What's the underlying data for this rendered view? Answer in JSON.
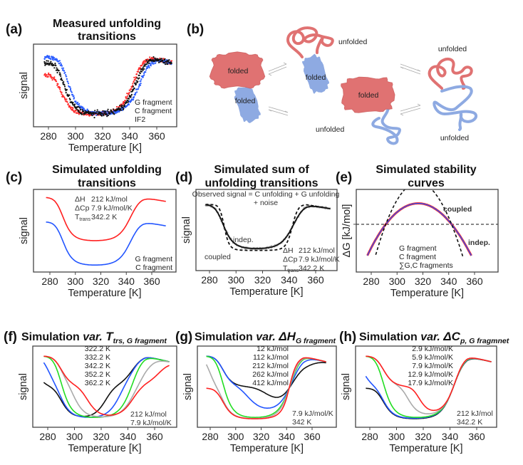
{
  "diagram": {
    "label": "(b)",
    "labels": [
      "folded",
      "folded",
      "unfolded",
      "folded",
      "folded",
      "unfolded",
      "unfolded",
      "unfolded"
    ],
    "colors": {
      "g_fragment": "#e07272",
      "c_fragment": "#8eaae2",
      "arrow": "#aaaaaa"
    }
  },
  "chart_data": [
    {
      "id": "a",
      "label": "(a)",
      "type": "scatter",
      "title": [
        "Measured unfolding",
        "transitions"
      ],
      "xlabel": "Temperature [K]",
      "ylabel": "signal",
      "xticks": [
        280,
        300,
        320,
        340,
        360
      ],
      "ylim": [
        -0.18,
        1.22
      ],
      "series": [
        {
          "name": "G fragment",
          "color": "#ff2a2a",
          "quantity": "signal",
          "components": [
            {
              "dH": 212,
              "dCp": 7.9,
              "Tm": 341
            }
          ],
          "cold_slope": 0.0045,
          "noise": 0.03,
          "x_range": [
            277,
            371
          ]
        },
        {
          "name": "C fragment",
          "color": "#2a5cff",
          "quantity": "signal",
          "components": [
            {
              "dH": 212,
              "dCp": 7.9,
              "Tm": 346.5
            }
          ],
          "cold_slope": 0.0,
          "noise": 0.03,
          "x_range": [
            277,
            371
          ]
        },
        {
          "name": "IF2",
          "color": "#111111",
          "quantity": "signal",
          "components": [
            {
              "dH": 212,
              "dCp": 7.9,
              "Tm": 343.5
            }
          ],
          "cold_slope": 0.0015,
          "noise": 0.04,
          "x_range": [
            277,
            371
          ]
        }
      ],
      "annotations": []
    },
    {
      "id": "c",
      "label": "(c)",
      "type": "line",
      "title": [
        "Simulated unfolding",
        "transitions"
      ],
      "xlabel": "Temperature [K]",
      "ylabel": "signal",
      "xticks": [
        280,
        300,
        320,
        340,
        360
      ],
      "ylim": [
        -0.11,
        1.715
      ],
      "series": [
        {
          "name": "G fragment",
          "color": "#ff2020",
          "quantity": "signal",
          "components": [
            {
              "dH": 212,
              "dCp": 7.9,
              "Tm": 342.2
            }
          ],
          "offset": 0.54,
          "x_range": [
            277,
            371
          ]
        },
        {
          "name": "C fragment",
          "color": "#2255ff",
          "quantity": "signal",
          "components": [
            {
              "dH": 212,
              "dCp": 7.9,
              "Tm": 342.2
            }
          ],
          "offset": 0,
          "x_range": [
            277,
            371
          ]
        }
      ],
      "annotations": [
        {
          "symbol": "ΔH",
          "value": "212 kJ/mol"
        },
        {
          "symbol": "ΔCp",
          "value": "7.9 kJ/mol/K"
        },
        {
          "symbol": "T",
          "sub": "trans",
          "value": "342.2 K"
        }
      ]
    },
    {
      "id": "d",
      "label": "(d)",
      "type": "line",
      "title": [
        "Simulated sum of",
        "unfolding transitions"
      ],
      "xlabel": "Temperature [K]",
      "ylabel": "signal",
      "xticks": [
        280,
        300,
        320,
        340,
        360
      ],
      "ylim": [
        -0.875,
        2.66
      ],
      "header": [
        "Observed signal = C unfolding + G unfolding",
        "+ noise"
      ],
      "series": [
        {
          "name": "noise",
          "kind": "points",
          "color": "#aaaaaa",
          "quantity": "signal",
          "components": [
            {
              "dH": 212,
              "dCp": 7.9,
              "Tm": 342.2
            },
            {
              "dH": 212,
              "dCp": 7.9,
              "Tm": 342.2
            }
          ],
          "noise": 0.04,
          "x_range": [
            277,
            371
          ]
        },
        {
          "name": "indep.",
          "color": "#111111",
          "quantity": "signal",
          "components": [
            {
              "dH": 212,
              "dCp": 7.9,
              "Tm": 342.2
            },
            {
              "dH": 212,
              "dCp": 7.9,
              "Tm": 342.2
            }
          ],
          "x_range": [
            277,
            371
          ]
        },
        {
          "name": "coupled",
          "color": "#111111",
          "dashed": true,
          "coupled": true,
          "quantity": "signal",
          "components": [
            {
              "dH": 212,
              "dCp": 7.9,
              "Tm": 342.2
            },
            {
              "dH": 212,
              "dCp": 7.9,
              "Tm": 342.2
            }
          ],
          "x_range": [
            277,
            371
          ]
        }
      ],
      "annotations": [
        {
          "symbol": "ΔH",
          "value": "212 kJ/mol"
        },
        {
          "symbol": "ΔCp",
          "value": "7.9 kJ/mol/K"
        },
        {
          "symbol": "T",
          "sub": "trans",
          "value": "342.2 K"
        }
      ]
    },
    {
      "id": "e",
      "label": "(e)",
      "type": "line",
      "title": [
        "Simulated stability",
        "curves"
      ],
      "xlabel": "Temperature [K]",
      "ylabel": "ΔG [kJ/mol]",
      "xticks": [
        280,
        300,
        320,
        340,
        360
      ],
      "ylim": [
        -18.5,
        13.5
      ],
      "zero_line": 0,
      "series": [
        {
          "name": "G fragment",
          "color": "#ff2020",
          "quantity": "dG",
          "components": [
            {
              "dH": 212,
              "dCp": 7.9,
              "Tm": 342.2
            }
          ],
          "x_range": [
            277,
            357.5
          ]
        },
        {
          "name": "C fragment",
          "color": "#2255ff",
          "quantity": "dG",
          "components": [
            {
              "dH": 212,
              "dCp": 7.9,
              "Tm": 342.2
            }
          ],
          "x_range": [
            277,
            357.5
          ]
        },
        {
          "name": "∑G,C fragments",
          "color": "#111111",
          "dashed": true,
          "quantity": "dG",
          "components": [
            {
              "dH": 212,
              "dCp": 7.9,
              "Tm": 342.2
            },
            {
              "dH": 212,
              "dCp": 7.9,
              "Tm": 342.2
            }
          ],
          "x_range": [
            283.5,
            351
          ]
        }
      ],
      "curve_labels": {
        "coupled": "coupled",
        "indep": "indep.",
        "indep_color": "#9a2a7e"
      }
    },
    {
      "id": "f",
      "label": "(f)",
      "type": "line",
      "title_parts": {
        "main": "Simulation ",
        "var": "var. ",
        "symbol": "T",
        "subscript": "trs, G fragment"
      },
      "xlabel": "Temperature [K]",
      "ylabel": "signal",
      "xticks": [
        280,
        300,
        320,
        340,
        360
      ],
      "ylim": [
        -0.22,
        2.31
      ],
      "series": [
        {
          "name": "322.2 K",
          "color": "#111111",
          "quantity": "signal",
          "components": [
            {
              "dH": 212,
              "dCp": 7.9,
              "Tm": 342.2
            },
            {
              "dH": 212,
              "dCp": 7.9,
              "Tm": 322.2
            }
          ],
          "x_range": [
            277,
            371
          ]
        },
        {
          "name": "332.2 K",
          "color": "#2255ff",
          "quantity": "signal",
          "components": [
            {
              "dH": 212,
              "dCp": 7.9,
              "Tm": 342.2
            },
            {
              "dH": 212,
              "dCp": 7.9,
              "Tm": 332.2
            }
          ],
          "x_range": [
            277,
            371
          ]
        },
        {
          "name": "342.2 K",
          "color": "#22dd22",
          "quantity": "signal",
          "components": [
            {
              "dH": 212,
              "dCp": 7.9,
              "Tm": 342.2
            },
            {
              "dH": 212,
              "dCp": 7.9,
              "Tm": 342.2
            }
          ],
          "x_range": [
            277,
            371
          ]
        },
        {
          "name": "352.2 K",
          "color": "#aaaaaa",
          "quantity": "signal",
          "components": [
            {
              "dH": 212,
              "dCp": 7.9,
              "Tm": 342.2
            },
            {
              "dH": 212,
              "dCp": 7.9,
              "Tm": 352.2
            }
          ],
          "x_range": [
            277,
            371
          ]
        },
        {
          "name": "362.2 K",
          "color": "#ff2020",
          "quantity": "signal",
          "components": [
            {
              "dH": 212,
              "dCp": 7.9,
              "Tm": 342.2
            },
            {
              "dH": 212,
              "dCp": 7.9,
              "Tm": 362.2
            }
          ],
          "x_range": [
            277,
            371
          ]
        }
      ],
      "annotations": [
        {
          "value": "212 kJ/mol"
        },
        {
          "value": "7.9 kJ/mol/K"
        }
      ]
    },
    {
      "id": "g",
      "label": "(g)",
      "type": "line",
      "title_parts": {
        "main": "Simulation ",
        "var": "var. ",
        "symbol": "ΔH",
        "subscript": "G fragment"
      },
      "xlabel": "Temperature [K]",
      "ylabel": "signal",
      "xticks": [
        280,
        300,
        320,
        340,
        360
      ],
      "ylim": [
        -0.22,
        2.31
      ],
      "series": [
        {
          "name": "12 kJ/mol",
          "color": "#111111",
          "quantity": "signal",
          "components": [
            {
              "dH": 212,
              "dCp": 7.9,
              "Tm": 342
            },
            {
              "dH": 12,
              "dCp": 7.9,
              "Tm": 342
            }
          ],
          "x_range": [
            277,
            371
          ]
        },
        {
          "name": "112 kJ/mol",
          "color": "#2255ff",
          "quantity": "signal",
          "components": [
            {
              "dH": 212,
              "dCp": 7.9,
              "Tm": 342
            },
            {
              "dH": 112,
              "dCp": 7.9,
              "Tm": 342
            }
          ],
          "x_range": [
            277,
            371
          ]
        },
        {
          "name": "212 kJ/mol",
          "color": "#22dd22",
          "quantity": "signal",
          "components": [
            {
              "dH": 212,
              "dCp": 7.9,
              "Tm": 342
            },
            {
              "dH": 212,
              "dCp": 7.9,
              "Tm": 342
            }
          ],
          "x_range": [
            277,
            371
          ]
        },
        {
          "name": "262 kJ/mol",
          "color": "#aaaaaa",
          "quantity": "signal",
          "components": [
            {
              "dH": 212,
              "dCp": 7.9,
              "Tm": 342
            },
            {
              "dH": 262,
              "dCp": 7.9,
              "Tm": 342
            }
          ],
          "x_range": [
            277,
            371
          ]
        },
        {
          "name": "412 kJ/mol",
          "color": "#ff2020",
          "quantity": "signal",
          "components": [
            {
              "dH": 212,
              "dCp": 7.9,
              "Tm": 342
            },
            {
              "dH": 412,
              "dCp": 7.9,
              "Tm": 342
            }
          ],
          "x_range": [
            277,
            371
          ]
        }
      ],
      "annotations": [
        {
          "value": "7.9 kJ/mol/K"
        },
        {
          "value": "342 K"
        }
      ]
    },
    {
      "id": "h",
      "label": "(h)",
      "type": "line",
      "title_parts": {
        "main": "Simulation ",
        "var": "var. ",
        "symbol": "ΔC",
        "subscript": "p, G fragmnet"
      },
      "xlabel": "Temperature [K]",
      "ylabel": "signal",
      "xticks": [
        280,
        300,
        320,
        340,
        360
      ],
      "ylim": [
        -0.22,
        2.31
      ],
      "series": [
        {
          "name": "2.9 kJ/mol/K",
          "color": "#111111",
          "quantity": "signal",
          "components": [
            {
              "dH": 212,
              "dCp": 7.9,
              "Tm": 342.2
            },
            {
              "dH": 212,
              "dCp": 2.9,
              "Tm": 342.2
            }
          ],
          "x_range": [
            277,
            371
          ]
        },
        {
          "name": "5.9 kJ/mol/K",
          "color": "#2255ff",
          "quantity": "signal",
          "components": [
            {
              "dH": 212,
              "dCp": 7.9,
              "Tm": 342.2
            },
            {
              "dH": 212,
              "dCp": 5.9,
              "Tm": 342.2
            }
          ],
          "x_range": [
            277,
            371
          ]
        },
        {
          "name": "7.9 kJ/mol/K",
          "color": "#22dd22",
          "quantity": "signal",
          "components": [
            {
              "dH": 212,
              "dCp": 7.9,
              "Tm": 342.2
            },
            {
              "dH": 212,
              "dCp": 7.9,
              "Tm": 342.2
            }
          ],
          "x_range": [
            277,
            371
          ]
        },
        {
          "name": "12.9 kJ/mol/K",
          "color": "#aaaaaa",
          "quantity": "signal",
          "components": [
            {
              "dH": 212,
              "dCp": 7.9,
              "Tm": 342.2
            },
            {
              "dH": 212,
              "dCp": 12.9,
              "Tm": 342.2
            }
          ],
          "x_range": [
            277,
            371
          ]
        },
        {
          "name": "17.9 kJ/mol/K",
          "color": "#ff2020",
          "quantity": "signal",
          "components": [
            {
              "dH": 212,
              "dCp": 7.9,
              "Tm": 342.2
            },
            {
              "dH": 212,
              "dCp": 17.9,
              "Tm": 342.2
            }
          ],
          "x_range": [
            277,
            371
          ]
        }
      ],
      "annotations": [
        {
          "value": "212 kJ/mol"
        },
        {
          "value": "342.2 K"
        }
      ]
    }
  ]
}
